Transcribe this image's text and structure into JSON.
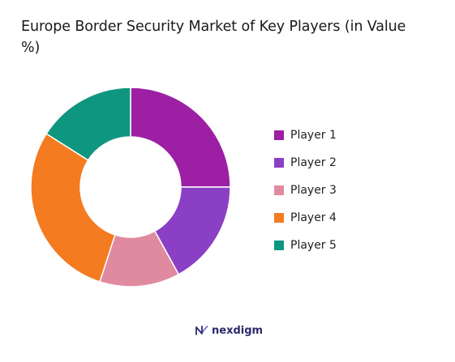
{
  "chart_data": {
    "type": "pie",
    "title": "Europe Border Security Market of Key Players (in Value %)",
    "categories": [
      "Player 1",
      "Player 2",
      "Player 3",
      "Player 4",
      "Player 5"
    ],
    "values": [
      25,
      17,
      13,
      29,
      16
    ],
    "colors": [
      "#9C1FA4",
      "#8B3FC4",
      "#E08AA0",
      "#F47B20",
      "#0E9680"
    ],
    "legend": "right",
    "donut": true
  },
  "brand": {
    "name": "nexdigm",
    "logo_icon": "nexdigm-logo-icon",
    "color": "#2c2a6b"
  }
}
